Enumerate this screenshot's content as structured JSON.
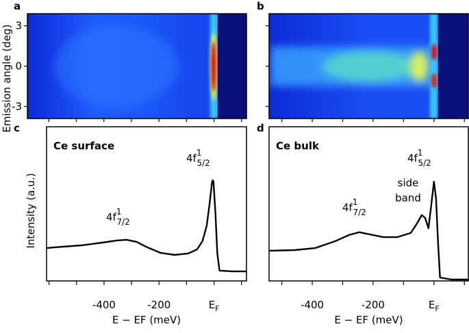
{
  "chart_data": [
    {
      "type": "heatmap",
      "panel_label": "a",
      "ylabel": "Emission angle (deg)",
      "xlim": [
        -678,
        118
      ],
      "ylim": [
        -3.9,
        3.9
      ],
      "yticks": [
        -3,
        0,
        3
      ],
      "xticks": [
        -600,
        -500,
        -400,
        -300,
        -200,
        -100,
        0,
        100
      ]
    },
    {
      "type": "heatmap",
      "panel_label": "b",
      "xlim": [
        -542,
        113
      ],
      "ylim": [
        -3.9,
        3.9
      ],
      "yticks": [
        -3,
        0,
        3
      ],
      "xticks": [
        -500,
        -400,
        -300,
        -200,
        -100,
        0,
        100
      ]
    },
    {
      "type": "line",
      "panel_label": "c",
      "title": "Ce surface",
      "ylabel": "Intensity (a.u.)",
      "xlabel": "E − EF (meV)",
      "xlim": [
        -609,
        118
      ],
      "ylim": [
        0,
        1
      ],
      "xticks": [
        -400,
        -200,
        {
          "value": 0,
          "label": "EF"
        }
      ],
      "xminorticks": [
        -600,
        -500,
        -300,
        -100,
        100
      ],
      "color": "#000000",
      "x": [
        -609,
        -579,
        -480,
        -405,
        -355,
        -318,
        -281,
        -243,
        -194,
        -144,
        -94,
        -62,
        -42,
        -27,
        -17,
        -7,
        -5,
        -2,
        5,
        12,
        20,
        67,
        117
      ],
      "values": [
        0.213,
        0.218,
        0.231,
        0.249,
        0.262,
        0.267,
        0.253,
        0.218,
        0.182,
        0.169,
        0.178,
        0.204,
        0.258,
        0.356,
        0.489,
        0.644,
        0.653,
        0.644,
        0.444,
        0.178,
        0.067,
        0.062,
        0.062
      ],
      "annotations": [
        {
          "base": "4f",
          "sup": "1",
          "sub": "7/2"
        },
        {
          "base": "4f",
          "sup": "1",
          "sub": "5/2"
        }
      ]
    },
    {
      "type": "line",
      "panel_label": "d",
      "title": "Ce bulk",
      "xlabel": "E − EF (meV)",
      "xlim": [
        -542,
        113
      ],
      "ylim": [
        0,
        1
      ],
      "xticks": [
        -400,
        -200,
        {
          "value": 0,
          "label": "EF"
        }
      ],
      "xminorticks": [
        -500,
        -300,
        -100,
        100
      ],
      "color": "#000000",
      "x": [
        -542,
        -458,
        -391,
        -324,
        -279,
        -245,
        -211,
        -166,
        -121,
        -76,
        -54,
        -40,
        -29,
        -18,
        -9,
        0,
        7,
        13,
        20,
        58,
        113
      ],
      "values": [
        0.196,
        0.2,
        0.213,
        0.258,
        0.298,
        0.316,
        0.302,
        0.284,
        0.284,
        0.311,
        0.378,
        0.427,
        0.409,
        0.342,
        0.489,
        0.644,
        0.533,
        0.267,
        0.022,
        0.009,
        0.009
      ],
      "annotations": [
        {
          "base": "4f",
          "sup": "1",
          "sub": "7/2"
        },
        {
          "base": "4f",
          "sup": "1",
          "sub": "5/2"
        },
        {
          "lines": [
            "side",
            "band"
          ]
        }
      ]
    }
  ]
}
